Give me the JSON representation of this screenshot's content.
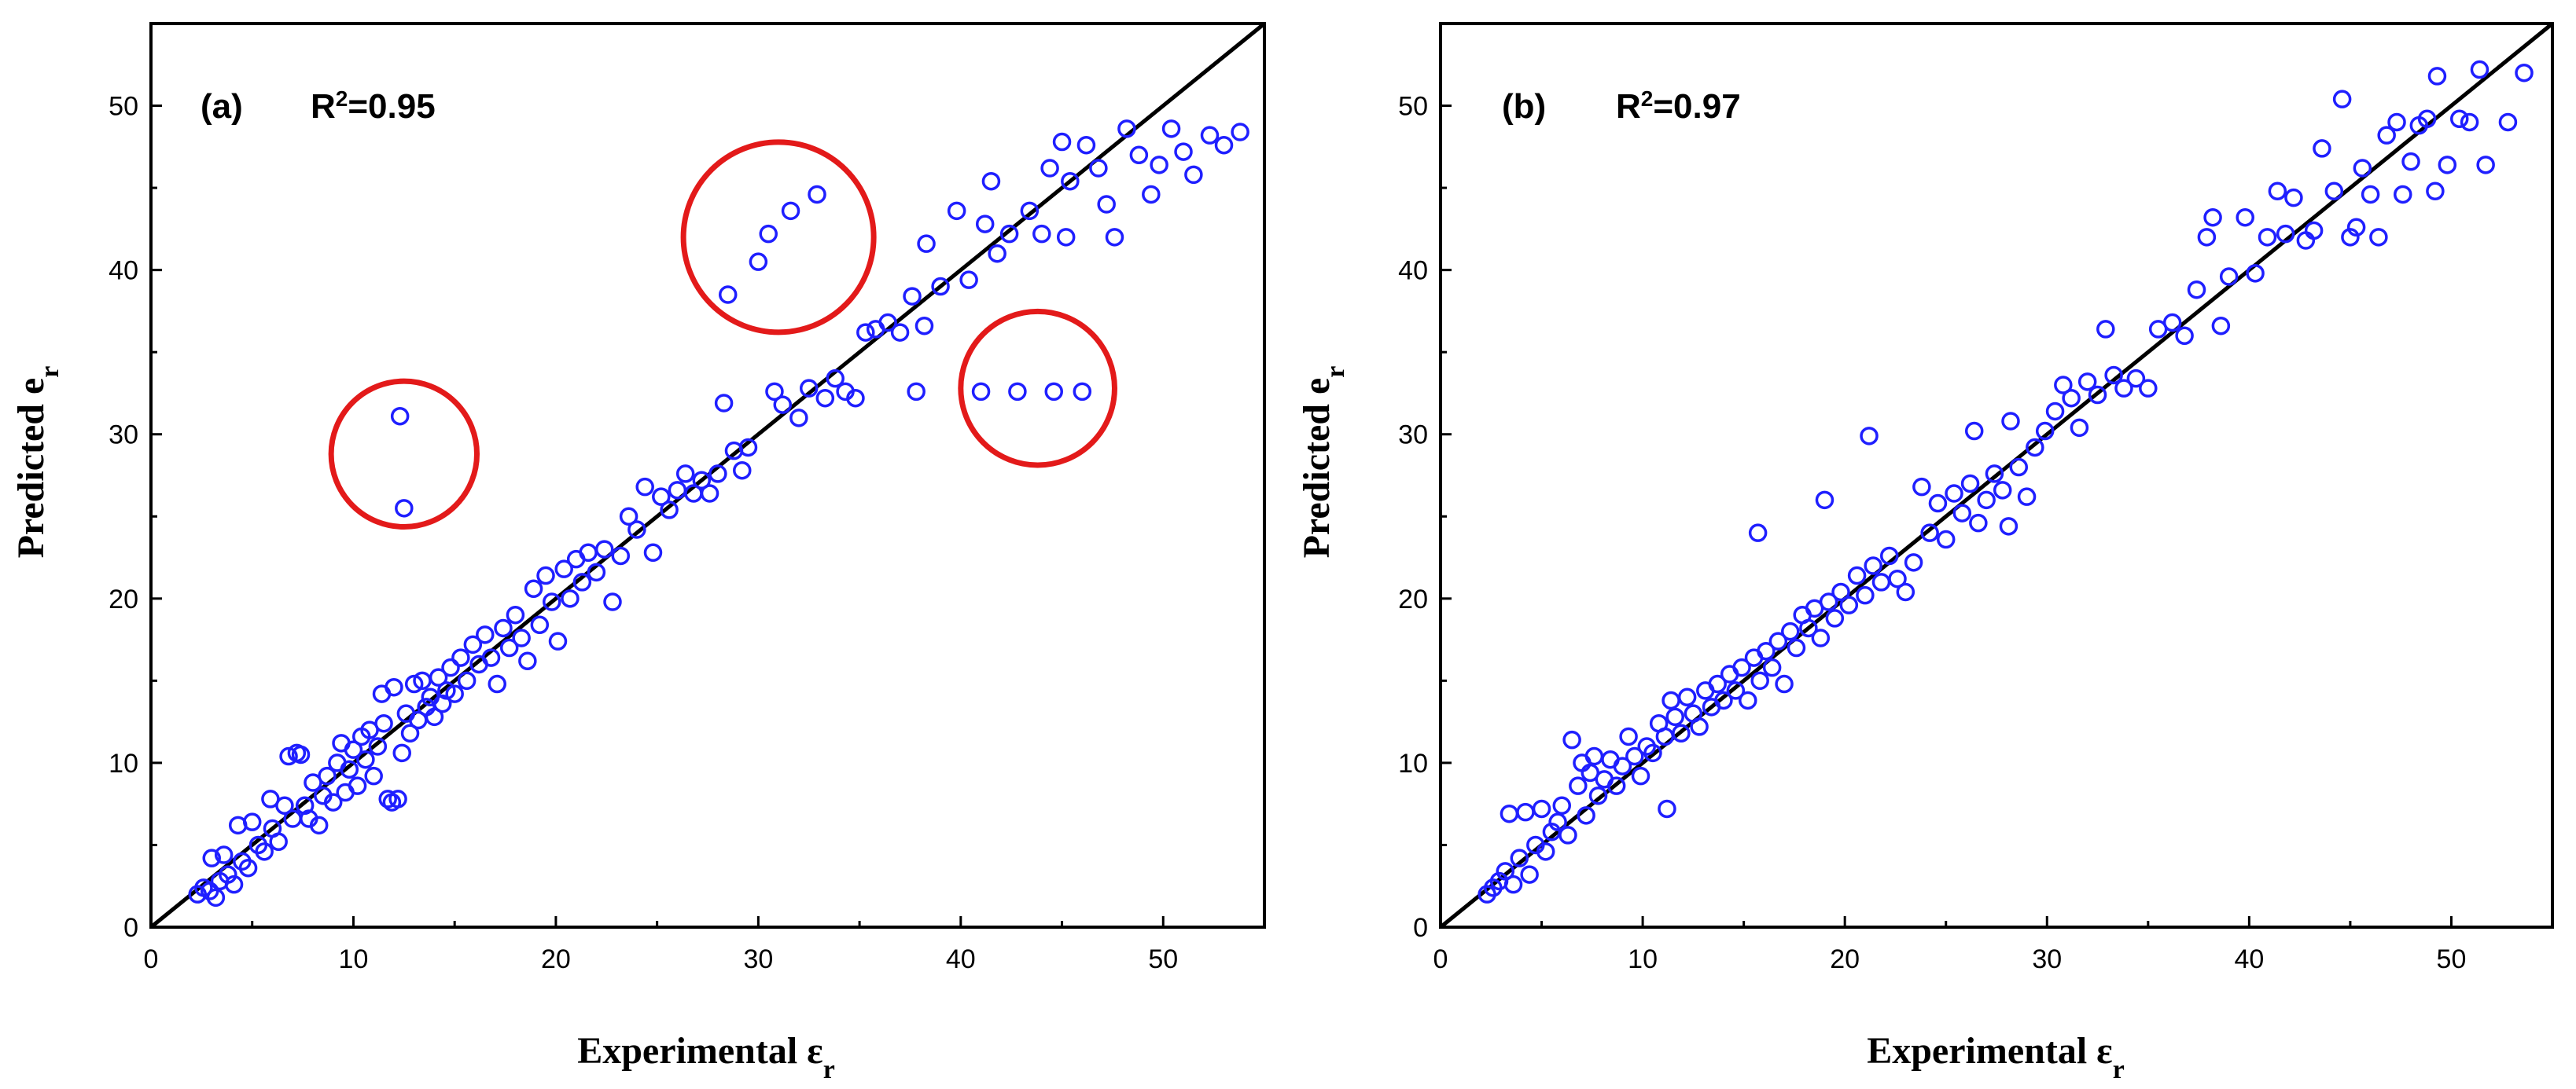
{
  "chart_data": [
    {
      "type": "scatter",
      "panel_label": "(a)",
      "r2_prefix": "R",
      "r2_exp": "2",
      "r2_value": "=0.95",
      "xlabel_main": "Experimental ε",
      "xlabel_sub": "r",
      "ylabel_main": "Predicted e",
      "ylabel_sub": "r",
      "xlim": [
        0,
        55
      ],
      "ylim": [
        0,
        55
      ],
      "xticks": [
        0,
        10,
        20,
        30,
        40,
        50
      ],
      "yticks": [
        0,
        10,
        20,
        30,
        40,
        50
      ],
      "reference_line": [
        [
          0,
          0
        ],
        [
          55,
          55
        ]
      ],
      "marker_color": "#1f1fff",
      "highlight_color": "#e31a1a",
      "highlight_circles": [
        {
          "x": 12.5,
          "y": 28.8,
          "r": 3.6
        },
        {
          "x": 31.0,
          "y": 42.0,
          "r": 4.7
        },
        {
          "x": 43.8,
          "y": 32.8,
          "r": 3.8
        }
      ],
      "points": [
        [
          2.3,
          2.0
        ],
        [
          2.6,
          2.4
        ],
        [
          2.9,
          2.2
        ],
        [
          3.0,
          4.2
        ],
        [
          3.2,
          1.8
        ],
        [
          3.4,
          2.8
        ],
        [
          3.6,
          4.4
        ],
        [
          3.8,
          3.2
        ],
        [
          4.1,
          2.6
        ],
        [
          4.3,
          6.2
        ],
        [
          4.5,
          4.0
        ],
        [
          4.8,
          3.6
        ],
        [
          5.0,
          6.4
        ],
        [
          5.3,
          5.0
        ],
        [
          5.6,
          4.6
        ],
        [
          5.9,
          7.8
        ],
        [
          6.0,
          6.0
        ],
        [
          6.3,
          5.2
        ],
        [
          6.6,
          7.4
        ],
        [
          6.8,
          10.4
        ],
        [
          7.0,
          6.6
        ],
        [
          7.2,
          10.6
        ],
        [
          7.4,
          10.5
        ],
        [
          7.6,
          7.4
        ],
        [
          7.8,
          6.6
        ],
        [
          8.0,
          8.8
        ],
        [
          8.3,
          6.2
        ],
        [
          8.5,
          8.0
        ],
        [
          8.7,
          9.2
        ],
        [
          9.0,
          7.6
        ],
        [
          9.2,
          10.0
        ],
        [
          9.4,
          11.2
        ],
        [
          9.6,
          8.2
        ],
        [
          9.8,
          9.6
        ],
        [
          10.0,
          10.8
        ],
        [
          10.2,
          8.6
        ],
        [
          10.4,
          11.6
        ],
        [
          10.6,
          10.2
        ],
        [
          10.8,
          12.0
        ],
        [
          11.0,
          9.2
        ],
        [
          11.2,
          11.0
        ],
        [
          11.4,
          14.2
        ],
        [
          11.5,
          12.4
        ],
        [
          11.7,
          7.8
        ],
        [
          11.9,
          7.6
        ],
        [
          12.0,
          14.6
        ],
        [
          12.2,
          7.8
        ],
        [
          12.3,
          31.1
        ],
        [
          12.5,
          25.5
        ],
        [
          12.4,
          10.6
        ],
        [
          12.6,
          13.0
        ],
        [
          12.8,
          11.8
        ],
        [
          13.0,
          14.8
        ],
        [
          13.2,
          12.6
        ],
        [
          13.4,
          15.0
        ],
        [
          13.6,
          13.4
        ],
        [
          13.8,
          14.0
        ],
        [
          14.0,
          12.8
        ],
        [
          14.2,
          15.2
        ],
        [
          14.4,
          13.6
        ],
        [
          14.6,
          14.4
        ],
        [
          14.8,
          15.8
        ],
        [
          15.0,
          14.2
        ],
        [
          15.3,
          16.4
        ],
        [
          15.6,
          15.0
        ],
        [
          15.9,
          17.2
        ],
        [
          16.2,
          16.0
        ],
        [
          16.5,
          17.8
        ],
        [
          16.8,
          16.4
        ],
        [
          17.1,
          14.8
        ],
        [
          17.4,
          18.2
        ],
        [
          17.7,
          17.0
        ],
        [
          18.0,
          19.0
        ],
        [
          18.3,
          17.6
        ],
        [
          18.6,
          16.2
        ],
        [
          18.9,
          20.6
        ],
        [
          19.2,
          18.4
        ],
        [
          19.5,
          21.4
        ],
        [
          19.8,
          19.8
        ],
        [
          20.1,
          17.4
        ],
        [
          20.4,
          21.8
        ],
        [
          20.7,
          20.0
        ],
        [
          21.0,
          22.4
        ],
        [
          21.3,
          21.0
        ],
        [
          21.6,
          22.8
        ],
        [
          22.0,
          21.6
        ],
        [
          22.4,
          23.0
        ],
        [
          22.8,
          19.8
        ],
        [
          23.2,
          22.6
        ],
        [
          23.6,
          25.0
        ],
        [
          24.0,
          24.2
        ],
        [
          24.4,
          26.8
        ],
        [
          24.8,
          22.8
        ],
        [
          25.2,
          26.2
        ],
        [
          25.6,
          25.4
        ],
        [
          26.0,
          26.6
        ],
        [
          26.4,
          27.6
        ],
        [
          26.8,
          26.4
        ],
        [
          27.2,
          27.2
        ],
        [
          27.6,
          26.4
        ],
        [
          28.0,
          27.6
        ],
        [
          28.3,
          31.9
        ],
        [
          28.5,
          38.5
        ],
        [
          28.8,
          29.0
        ],
        [
          29.2,
          27.8
        ],
        [
          29.5,
          29.2
        ],
        [
          30.0,
          40.5
        ],
        [
          30.5,
          42.2
        ],
        [
          30.8,
          32.6
        ],
        [
          31.2,
          31.8
        ],
        [
          31.6,
          43.6
        ],
        [
          32.0,
          31.0
        ],
        [
          32.5,
          32.8
        ],
        [
          32.9,
          44.6
        ],
        [
          33.3,
          32.2
        ],
        [
          33.8,
          33.4
        ],
        [
          34.3,
          32.6
        ],
        [
          34.8,
          32.2
        ],
        [
          35.3,
          36.2
        ],
        [
          35.8,
          36.4
        ],
        [
          36.4,
          36.8
        ],
        [
          37.0,
          36.2
        ],
        [
          37.6,
          38.4
        ],
        [
          37.8,
          32.6
        ],
        [
          38.2,
          36.6
        ],
        [
          38.3,
          41.6
        ],
        [
          39.0,
          39.0
        ],
        [
          39.8,
          43.6
        ],
        [
          40.4,
          39.4
        ],
        [
          41.0,
          32.6
        ],
        [
          41.2,
          42.8
        ],
        [
          41.5,
          45.4
        ],
        [
          41.8,
          41.0
        ],
        [
          42.4,
          42.2
        ],
        [
          42.8,
          32.6
        ],
        [
          43.4,
          43.6
        ],
        [
          44.0,
          42.2
        ],
        [
          44.4,
          46.2
        ],
        [
          44.6,
          32.6
        ],
        [
          45.0,
          47.8
        ],
        [
          45.2,
          42.0
        ],
        [
          45.4,
          45.4
        ],
        [
          46.0,
          32.6
        ],
        [
          46.2,
          47.6
        ],
        [
          46.8,
          46.2
        ],
        [
          47.2,
          44.0
        ],
        [
          47.6,
          42.0
        ],
        [
          48.2,
          48.6
        ],
        [
          48.8,
          47.0
        ],
        [
          49.4,
          44.6
        ],
        [
          49.8,
          46.4
        ],
        [
          50.4,
          48.6
        ],
        [
          51.0,
          47.2
        ],
        [
          51.5,
          45.8
        ],
        [
          52.3,
          48.2
        ],
        [
          53.0,
          47.6
        ],
        [
          53.8,
          48.4
        ]
      ]
    },
    {
      "type": "scatter",
      "panel_label": "(b)",
      "r2_prefix": "R",
      "r2_exp": "2",
      "r2_value": "=0.97",
      "xlabel_main": "Experimental ε",
      "xlabel_sub": "r",
      "ylabel_main": "Predicted e",
      "ylabel_sub": "r",
      "xlim": [
        0,
        55
      ],
      "ylim": [
        0,
        55
      ],
      "xticks": [
        0,
        10,
        20,
        30,
        40,
        50
      ],
      "yticks": [
        0,
        10,
        20,
        30,
        40,
        50
      ],
      "reference_line": [
        [
          0,
          0
        ],
        [
          55,
          55
        ]
      ],
      "marker_color": "#1f1fff",
      "highlight_circles": [],
      "points": [
        [
          2.3,
          2.0
        ],
        [
          2.6,
          2.4
        ],
        [
          2.9,
          2.8
        ],
        [
          3.2,
          3.4
        ],
        [
          3.4,
          6.9
        ],
        [
          3.6,
          2.6
        ],
        [
          3.9,
          4.2
        ],
        [
          4.2,
          7.0
        ],
        [
          4.4,
          3.2
        ],
        [
          4.7,
          5.0
        ],
        [
          5.0,
          7.2
        ],
        [
          5.2,
          4.6
        ],
        [
          5.5,
          5.8
        ],
        [
          5.8,
          6.4
        ],
        [
          6.0,
          7.4
        ],
        [
          6.3,
          5.6
        ],
        [
          6.5,
          11.4
        ],
        [
          6.8,
          8.6
        ],
        [
          7.0,
          10.0
        ],
        [
          7.2,
          6.8
        ],
        [
          7.4,
          9.4
        ],
        [
          7.6,
          10.4
        ],
        [
          7.8,
          8.0
        ],
        [
          8.1,
          9.0
        ],
        [
          8.4,
          10.2
        ],
        [
          8.7,
          8.6
        ],
        [
          9.0,
          9.8
        ],
        [
          9.3,
          11.6
        ],
        [
          9.6,
          10.4
        ],
        [
          9.9,
          9.2
        ],
        [
          10.2,
          11.0
        ],
        [
          10.5,
          10.6
        ],
        [
          10.8,
          12.4
        ],
        [
          11.1,
          11.6
        ],
        [
          11.2,
          7.2
        ],
        [
          11.4,
          13.8
        ],
        [
          11.6,
          12.8
        ],
        [
          11.9,
          11.8
        ],
        [
          12.2,
          14.0
        ],
        [
          12.5,
          13.0
        ],
        [
          12.8,
          12.2
        ],
        [
          13.1,
          14.4
        ],
        [
          13.4,
          13.4
        ],
        [
          13.7,
          14.8
        ],
        [
          14.0,
          13.8
        ],
        [
          14.3,
          15.4
        ],
        [
          14.6,
          14.4
        ],
        [
          14.9,
          15.8
        ],
        [
          15.2,
          13.8
        ],
        [
          15.5,
          16.4
        ],
        [
          15.7,
          24.0
        ],
        [
          15.8,
          15.0
        ],
        [
          16.1,
          16.8
        ],
        [
          16.4,
          15.8
        ],
        [
          16.7,
          17.4
        ],
        [
          17.0,
          14.8
        ],
        [
          17.3,
          18.0
        ],
        [
          17.6,
          17.0
        ],
        [
          17.9,
          19.0
        ],
        [
          18.2,
          18.2
        ],
        [
          18.5,
          19.4
        ],
        [
          18.8,
          17.6
        ],
        [
          19.0,
          26.0
        ],
        [
          19.2,
          19.8
        ],
        [
          19.5,
          18.8
        ],
        [
          19.8,
          20.4
        ],
        [
          20.2,
          19.6
        ],
        [
          20.6,
          21.4
        ],
        [
          21.0,
          20.2
        ],
        [
          21.2,
          29.9
        ],
        [
          21.4,
          22.0
        ],
        [
          21.8,
          21.0
        ],
        [
          22.2,
          22.6
        ],
        [
          22.6,
          21.2
        ],
        [
          23.0,
          20.4
        ],
        [
          23.4,
          22.2
        ],
        [
          23.8,
          26.8
        ],
        [
          24.2,
          24.0
        ],
        [
          24.6,
          25.8
        ],
        [
          25.0,
          23.6
        ],
        [
          25.4,
          26.4
        ],
        [
          25.8,
          25.2
        ],
        [
          26.2,
          27.0
        ],
        [
          26.4,
          30.2
        ],
        [
          26.6,
          24.6
        ],
        [
          27.0,
          26.0
        ],
        [
          27.4,
          27.6
        ],
        [
          27.8,
          26.6
        ],
        [
          28.1,
          24.4
        ],
        [
          28.2,
          30.8
        ],
        [
          28.6,
          28.0
        ],
        [
          29.0,
          26.2
        ],
        [
          29.4,
          29.2
        ],
        [
          29.9,
          30.2
        ],
        [
          30.4,
          31.4
        ],
        [
          30.8,
          33.0
        ],
        [
          31.2,
          32.2
        ],
        [
          31.6,
          30.4
        ],
        [
          32.0,
          33.2
        ],
        [
          32.5,
          32.4
        ],
        [
          32.9,
          36.4
        ],
        [
          33.3,
          33.6
        ],
        [
          33.8,
          32.8
        ],
        [
          34.4,
          33.4
        ],
        [
          35.0,
          32.8
        ],
        [
          35.5,
          36.4
        ],
        [
          36.2,
          36.8
        ],
        [
          36.8,
          36.0
        ],
        [
          37.4,
          38.8
        ],
        [
          37.9,
          42.0
        ],
        [
          38.2,
          43.2
        ],
        [
          38.6,
          36.6
        ],
        [
          39.0,
          39.6
        ],
        [
          39.8,
          43.2
        ],
        [
          40.3,
          39.8
        ],
        [
          40.9,
          42.0
        ],
        [
          41.4,
          44.8
        ],
        [
          41.8,
          42.2
        ],
        [
          42.2,
          44.4
        ],
        [
          42.8,
          41.8
        ],
        [
          43.2,
          42.4
        ],
        [
          43.6,
          47.4
        ],
        [
          44.2,
          44.8
        ],
        [
          44.6,
          50.4
        ],
        [
          45.0,
          42.0
        ],
        [
          45.3,
          42.6
        ],
        [
          45.6,
          46.2
        ],
        [
          46.0,
          44.6
        ],
        [
          46.4,
          42.0
        ],
        [
          46.8,
          48.2
        ],
        [
          47.3,
          49.0
        ],
        [
          47.6,
          44.6
        ],
        [
          48.0,
          46.6
        ],
        [
          48.4,
          48.8
        ],
        [
          48.8,
          49.2
        ],
        [
          49.2,
          44.8
        ],
        [
          49.3,
          51.8
        ],
        [
          49.8,
          46.4
        ],
        [
          50.4,
          49.2
        ],
        [
          50.9,
          49.0
        ],
        [
          51.4,
          52.2
        ],
        [
          51.7,
          46.4
        ],
        [
          52.8,
          49.0
        ],
        [
          53.6,
          52.0
        ]
      ]
    }
  ]
}
